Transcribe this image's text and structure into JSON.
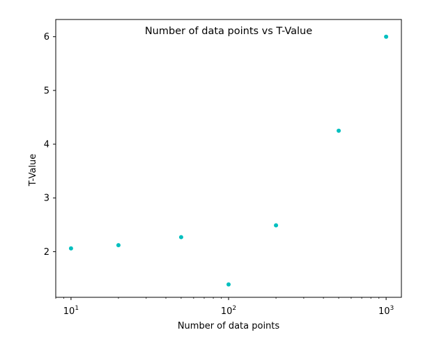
{
  "chart_data": {
    "type": "scatter",
    "title": "Number of data points vs T-Value",
    "xlabel": "Number of data points",
    "ylabel": "T-Value",
    "x_scale": "log",
    "xlim": [
      8,
      1250
    ],
    "ylim": [
      1.15,
      6.32
    ],
    "grid": false,
    "marker_color": "#00bfbf",
    "x_ticks": [
      {
        "value": 10,
        "base": "10",
        "exp": "1"
      },
      {
        "value": 100,
        "base": "10",
        "exp": "2"
      },
      {
        "value": 1000,
        "base": "10",
        "exp": "3"
      }
    ],
    "y_ticks": [
      {
        "value": 2,
        "label": "2"
      },
      {
        "value": 3,
        "label": "3"
      },
      {
        "value": 4,
        "label": "4"
      },
      {
        "value": 5,
        "label": "5"
      },
      {
        "value": 6,
        "label": "6"
      }
    ],
    "x": [
      10,
      20,
      50,
      100,
      200,
      500,
      1000
    ],
    "y": [
      2.06,
      2.12,
      2.27,
      1.39,
      2.49,
      4.25,
      6.0
    ]
  }
}
